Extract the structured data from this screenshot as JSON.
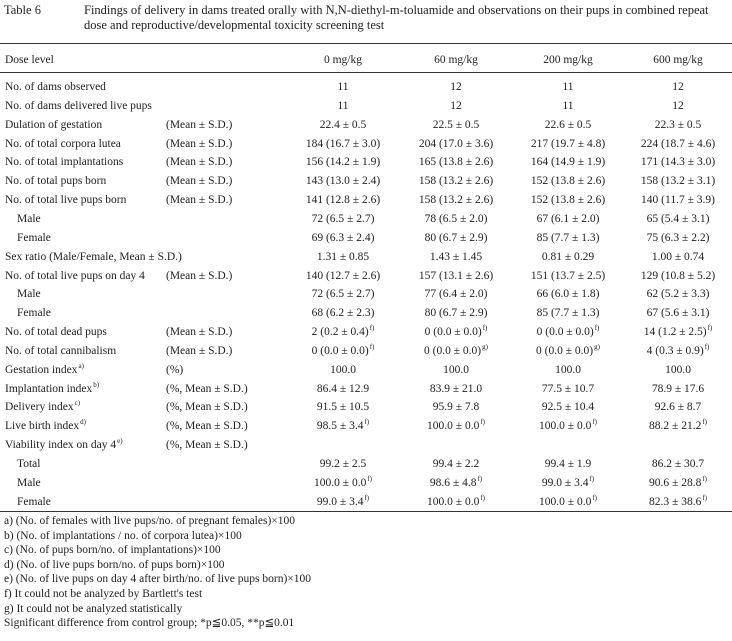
{
  "caption": {
    "label": "Table 6",
    "title": "Findings of delivery in dams treated orally with N,N-diethyl-m-toluamide and observations on their pups in combined repeat dose and reproductive/developmental toxicity screening test"
  },
  "table": {
    "header": [
      "Dose level",
      "0 mg/kg",
      "60 mg/kg",
      "200 mg/kg",
      "600 mg/kg"
    ],
    "rows": [
      {
        "label": "No. of dams observed",
        "cells": [
          "11",
          "12",
          "11",
          "12"
        ]
      },
      {
        "label": "No. of dams delivered live pups",
        "cells": [
          "11",
          "12",
          "11",
          "12"
        ]
      },
      {
        "label": "Dulation of gestation",
        "note": "(Mean ± S.D.)",
        "cells": [
          "22.4 ± 0.5",
          "22.5 ± 0.5",
          "22.6 ± 0.5",
          "22.3 ± 0.5"
        ]
      },
      {
        "label": "No. of total corpora lutea",
        "note": "(Mean ± S.D.)",
        "cells": [
          "184 (16.7 ± 3.0)",
          "204 (17.0 ± 3.6)",
          "217 (19.7 ± 4.8)",
          "224 (18.7 ± 4.6)"
        ]
      },
      {
        "label": "No. of total implantations",
        "note": "(Mean ± S.D.)",
        "cells": [
          "156 (14.2 ± 1.9)",
          "165 (13.8 ± 2.6)",
          "164 (14.9 ± 1.9)",
          "171 (14.3 ± 3.0)"
        ]
      },
      {
        "label": "No. of total pups born",
        "note": "(Mean ± S.D.)",
        "cells": [
          "143 (13.0 ± 2.4)",
          "158 (13.2 ± 2.6)",
          "152 (13.8 ± 2.6)",
          "158 (13.2 ± 3.1)"
        ]
      },
      {
        "label": "No. of total live pups born",
        "note": "(Mean ± S.D.)",
        "cells": [
          "141 (12.8 ± 2.6)",
          "158 (13.2 ± 2.6)",
          "152 (13.8 ± 2.6)",
          "140 (11.7 ± 3.9)"
        ]
      },
      {
        "label": "Male",
        "indent": true,
        "cells": [
          "72 (6.5 ± 2.7)",
          "78 (6.5 ± 2.0)",
          "67 (6.1 ± 2.0)",
          "65 (5.4 ± 3.1)"
        ]
      },
      {
        "label": "Female",
        "indent": true,
        "cells": [
          "69 (6.3 ± 2.4)",
          "80 (6.7 ± 2.9)",
          "85 (7.7 ± 1.3)",
          "75 (6.3 ± 2.2)"
        ]
      },
      {
        "label": "Sex ratio (Male/Female, Mean ± S.D.)",
        "cells": [
          "1.31 ± 0.85",
          "1.43 ± 1.45",
          "0.81 ± 0.29",
          "1.00 ± 0.74"
        ]
      },
      {
        "label": "No. of total live pups on day 4",
        "note": "(Mean ± S.D.)",
        "cells": [
          "140 (12.7 ± 2.6)",
          "157 (13.1 ± 2.6)",
          "151 (13.7 ± 2.5)",
          "129 (10.8 ± 5.2)"
        ]
      },
      {
        "label": "Male",
        "indent": true,
        "cells": [
          "72 (6.5 ± 2.7)",
          "77 (6.4 ± 2.0)",
          "66 (6.0 ± 1.8)",
          "62 (5.2 ± 3.3)"
        ]
      },
      {
        "label": "Female",
        "indent": true,
        "cells": [
          "68 (6.2 ± 2.3)",
          "80 (6.7 ± 2.9)",
          "85 (7.7 ± 1.3)",
          "67 (5.6 ± 3.1)"
        ]
      },
      {
        "label": "No. of total dead pups",
        "note": "(Mean ± S.D.)",
        "cells": [
          {
            "text": "2 (0.2 ± 0.4)",
            "sup": "f)"
          },
          {
            "text": "0 (0.0 ± 0.0)",
            "sup": "f)"
          },
          {
            "text": "0 (0.0 ± 0.0)",
            "sup": "f)"
          },
          {
            "text": "14 (1.2 ± 2.5)",
            "sup": "f)"
          }
        ]
      },
      {
        "label": "No. of total cannibalism",
        "note": "(Mean ± S.D.)",
        "cells": [
          {
            "text": "0 (0.0 ± 0.0)",
            "sup": "f)"
          },
          {
            "text": "0 (0.0 ± 0.0)",
            "sup": "g)"
          },
          {
            "text": "0 (0.0 ± 0.0)",
            "sup": "g)"
          },
          {
            "text": "4 (0.3 ± 0.9)",
            "sup": "f)"
          }
        ]
      },
      {
        "label": "Gestation index",
        "label_sup": "a)",
        "note": "(%)",
        "cells": [
          "100.0",
          "100.0",
          "100.0",
          "100.0"
        ]
      },
      {
        "label": "Implantation index",
        "label_sup": "b)",
        "note": "(%, Mean ± S.D.)",
        "cells": [
          "86.4 ± 12.9",
          "83.9 ± 21.0",
          "77.5 ± 10.7",
          "78.9 ± 17.6"
        ]
      },
      {
        "label": "Delivery index",
        "label_sup": "c)",
        "note": "(%, Mean ± S.D.)",
        "cells": [
          "91.5 ± 10.5",
          "95.9 ± 7.8",
          "92.5 ± 10.4",
          "92.6 ± 8.7"
        ]
      },
      {
        "label": "Live birth index",
        "label_sup": "d)",
        "note": "(%, Mean ± S.D.)",
        "cells": [
          {
            "text": "98.5 ± 3.4",
            "sup": "f)"
          },
          {
            "text": "100.0 ± 0.0",
            "sup": "f)"
          },
          {
            "text": "100.0 ± 0.0",
            "sup": "f)"
          },
          {
            "text": "88.2 ± 21.2",
            "sup": "f)"
          }
        ]
      },
      {
        "label": "Viability index on day 4",
        "label_sup": "e)",
        "note": "(%, Mean ± S.D.)",
        "cells": []
      },
      {
        "label": "Total",
        "indent": true,
        "cells": [
          "99.2 ± 2.5",
          "99.4 ± 2.2",
          "99.4 ± 1.9",
          "86.2 ± 30.7"
        ]
      },
      {
        "label": "Male",
        "indent": true,
        "cells": [
          {
            "text": "100.0 ± 0.0",
            "sup": "f)"
          },
          {
            "text": "98.6 ± 4.8",
            "sup": "f)"
          },
          {
            "text": "99.0 ± 3.4",
            "sup": "f)"
          },
          {
            "text": "90.6 ± 28.8",
            "sup": "f)"
          }
        ]
      },
      {
        "label": "Female",
        "indent": true,
        "cells": [
          {
            "text": "99.0 ± 3.4",
            "sup": "f)"
          },
          {
            "text": "100.0 ± 0.0",
            "sup": "f)"
          },
          {
            "text": "100.0 ± 0.0",
            "sup": "f)"
          },
          {
            "text": "82.3 ± 38.6",
            "sup": "f)"
          }
        ]
      }
    ]
  },
  "footnotes": [
    "a) (No. of females with live pups/no. of pregnant females)×100",
    "b) (No. of implantations / no. of corpora lutea)×100",
    "c) (No. of pups born/no. of implantations)×100",
    "d) (No. of live pups born/no. of pups born)×100",
    "e) (No. of live pups on day 4 after birth/no. of live pups born)×100",
    "f) It could not be analyzed by Bartlett's test",
    "g) It could not be analyzed statistically",
    "Significant difference from control group; *p≦0.05, **p≦0.01"
  ]
}
